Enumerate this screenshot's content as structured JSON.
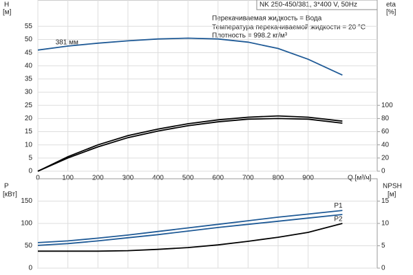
{
  "chart_data": [
    {
      "type": "line",
      "title": "NK 250-450/381, 3*400 V, 50Hz",
      "annotations": [
        "Перекачиваемая жидкость = Вода",
        "Температура перекачиваемой жидкости = 20 °C",
        "Плотность = 998.2 кг/м³"
      ],
      "xlabel": "Q [м³/ч]",
      "ylabel": [
        "H",
        "[м]"
      ],
      "y2label": [
        "eta",
        "[%]"
      ],
      "x": [
        0,
        100,
        200,
        300,
        400,
        500,
        600,
        700,
        800,
        900,
        1014
      ],
      "xlim": [
        0,
        1130
      ],
      "xticks": [
        0,
        100,
        200,
        300,
        400,
        500,
        600,
        700,
        800,
        900
      ],
      "ylim": [
        0,
        65
      ],
      "yticks": [
        0,
        5,
        10,
        15,
        20,
        25,
        30,
        35,
        40,
        45,
        50,
        55
      ],
      "y2lim": [
        0,
        260
      ],
      "y2ticks": [
        0,
        20,
        40,
        60,
        80,
        100
      ],
      "grid": true,
      "series": [
        {
          "label": "381 мм",
          "color": "#1f5a96",
          "values": [
            46,
            47.5,
            48.6,
            49.5,
            50.2,
            50.5,
            50.2,
            49,
            46.6,
            42.5,
            36.5
          ]
        },
        {
          "color": "#000000",
          "axis": "y2",
          "values": [
            0,
            22,
            40,
            54,
            64,
            72,
            78,
            82,
            84,
            82,
            76
          ]
        },
        {
          "color": "#000000",
          "axis": "y2",
          "values": [
            0,
            20,
            37,
            51,
            61,
            69,
            75,
            79,
            80,
            79,
            73
          ]
        }
      ]
    },
    {
      "type": "line",
      "ylabel": [
        "P",
        "[кВт]"
      ],
      "y2label": [
        "NPSH",
        "[м]"
      ],
      "x": [
        0,
        100,
        200,
        300,
        400,
        500,
        600,
        700,
        800,
        900,
        1014
      ],
      "xlim": [
        0,
        1130
      ],
      "ylim": [
        0,
        200
      ],
      "yticks": [
        0,
        50,
        100,
        150
      ],
      "y2lim": [
        0,
        20
      ],
      "y2ticks": [
        0,
        5,
        10,
        15
      ],
      "grid": true,
      "series": [
        {
          "name": "P1",
          "color": "#1f5a96",
          "values": [
            57,
            61,
            67,
            74,
            82,
            90,
            98,
            106,
            114,
            121,
            129
          ]
        },
        {
          "name": "P2",
          "color": "#1f5a96",
          "values": [
            51,
            55,
            61,
            68,
            75,
            83,
            91,
            98,
            105,
            112,
            120
          ]
        },
        {
          "color": "#000000",
          "axis": "y2",
          "values": [
            3.8,
            3.8,
            3.8,
            3.9,
            4.2,
            4.6,
            5.2,
            6,
            6.9,
            8,
            10
          ]
        }
      ]
    }
  ]
}
